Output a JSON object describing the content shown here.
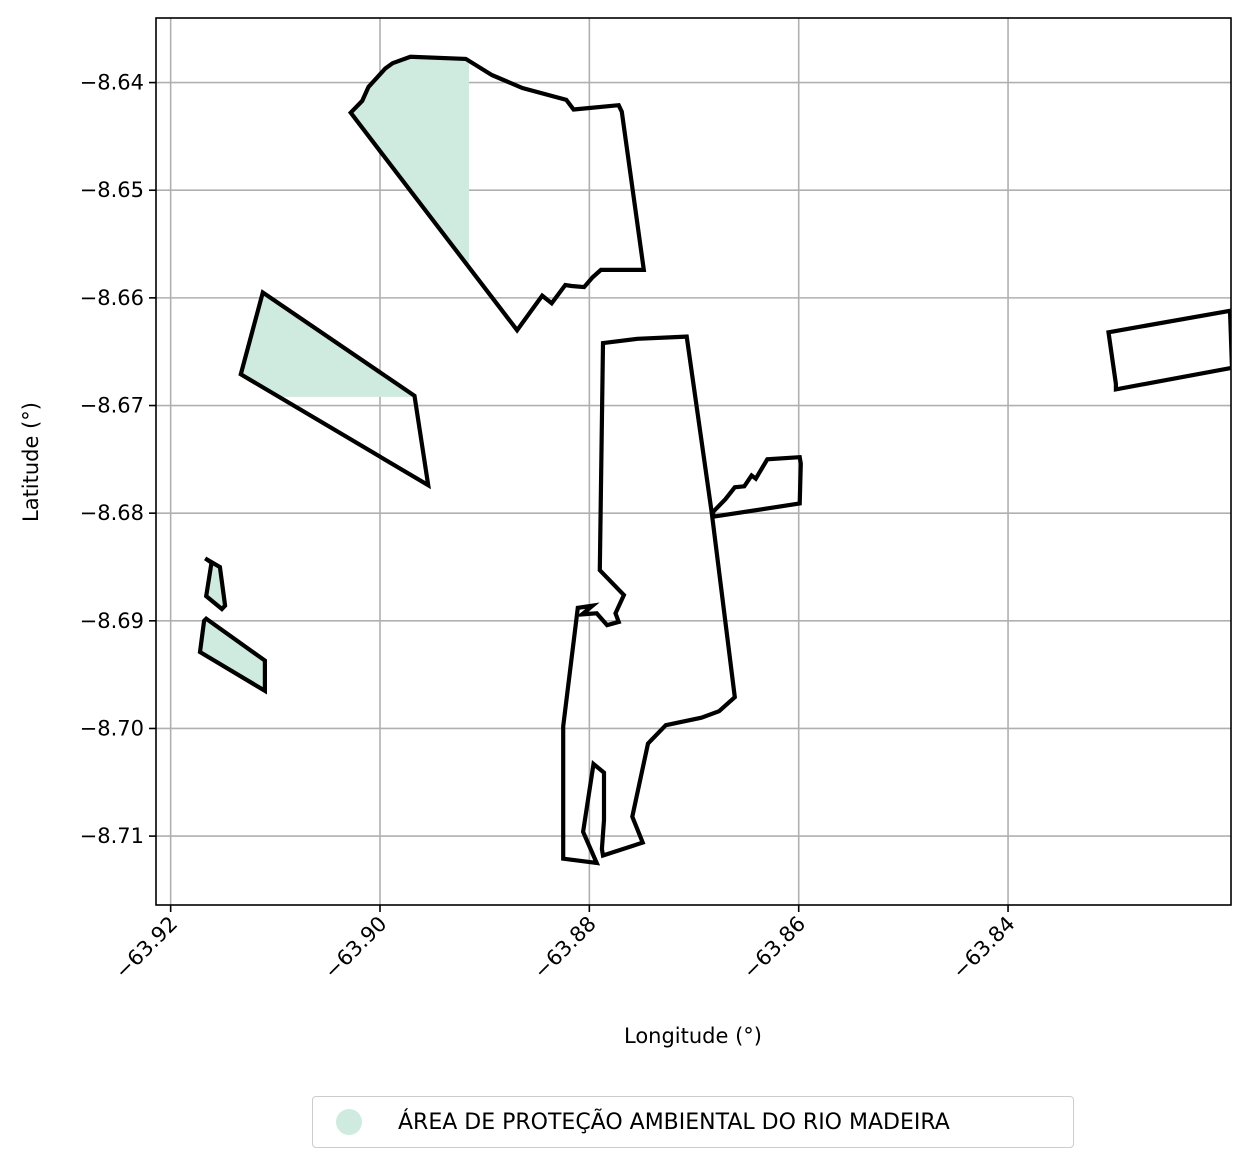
{
  "chart_data": {
    "type": "map",
    "xlabel": "Longitude (°)",
    "ylabel": "Latitude (°)",
    "xlim": [
      -63.9214,
      -63.8187
    ],
    "ylim": [
      -8.7164,
      -8.634
    ],
    "grid": true,
    "x_ticks": [
      -63.92,
      -63.9,
      -63.88,
      -63.86,
      -63.84
    ],
    "x_tick_labels": [
      "−63.92",
      "−63.90",
      "−63.88",
      "−63.86",
      "−63.84"
    ],
    "y_ticks": [
      -8.64,
      -8.65,
      -8.66,
      -8.67,
      -8.68,
      -8.69,
      -8.7,
      -8.71
    ],
    "y_tick_labels": [
      "−8.64",
      "−8.65",
      "−8.66",
      "−8.67",
      "−8.68",
      "−8.69",
      "−8.70",
      "−8.71"
    ],
    "legend": {
      "placement": "bottom-center",
      "entries": [
        {
          "label": "ÁREA DE PROTEÇÃO AMBIENTAL DO RIO MADEIRA",
          "color": "#cfeade"
        }
      ]
    },
    "fill_color": "#cfeade",
    "outline_color": "#000000",
    "polygons": [
      {
        "name": "north-parcel",
        "points": [
          [
            -63.9028,
            -8.6428
          ],
          [
            -63.9017,
            -8.6417
          ],
          [
            -63.9011,
            -8.6404
          ],
          [
            -63.8995,
            -8.6387
          ],
          [
            -63.8988,
            -8.6382
          ],
          [
            -63.8971,
            -8.6376
          ],
          [
            -63.8918,
            -8.6378
          ],
          [
            -63.8893,
            -8.6393
          ],
          [
            -63.8864,
            -8.6405
          ],
          [
            -63.8822,
            -8.6416
          ],
          [
            -63.8815,
            -8.6425
          ],
          [
            -63.8772,
            -8.6421
          ],
          [
            -63.8769,
            -8.6427
          ],
          [
            -63.8748,
            -8.6574
          ],
          [
            -63.8789,
            -8.6574
          ],
          [
            -63.8797,
            -8.6581
          ],
          [
            -63.8805,
            -8.659
          ],
          [
            -63.8817,
            -8.6589
          ],
          [
            -63.8823,
            -8.6588
          ],
          [
            -63.8836,
            -8.6605
          ],
          [
            -63.8845,
            -8.6598
          ],
          [
            -63.8869,
            -8.663
          ]
        ],
        "clip_x_max": -63.8915
      },
      {
        "name": "west-quadrilateral",
        "points": [
          [
            -63.9112,
            -8.6595
          ],
          [
            -63.9133,
            -8.6671
          ],
          [
            -63.8954,
            -8.6774
          ],
          [
            -63.8967,
            -8.6691
          ]
        ],
        "clip_y_min": -8.6692
      },
      {
        "name": "small-west-parcel-upper",
        "points": [
          [
            -63.9167,
            -8.6842
          ],
          [
            -63.9153,
            -8.685
          ],
          [
            -63.9148,
            -8.6886
          ],
          [
            -63.9151,
            -8.6889
          ],
          [
            -63.9166,
            -8.6877
          ],
          [
            -63.9161,
            -8.6846
          ]
        ],
        "clip_y_min": -8.7
      },
      {
        "name": "small-west-parcel-lower",
        "points": [
          [
            -63.9168,
            -8.69
          ],
          [
            -63.9172,
            -8.6929
          ],
          [
            -63.911,
            -8.6965
          ],
          [
            -63.911,
            -8.6937
          ],
          [
            -63.9166,
            -8.6898
          ]
        ],
        "clip_y_min": -8.7
      },
      {
        "name": "central-parcel",
        "points": [
          [
            -63.8787,
            -8.6642
          ],
          [
            -63.879,
            -8.6853
          ],
          [
            -63.8767,
            -8.6876
          ],
          [
            -63.8775,
            -8.6893
          ],
          [
            -63.8772,
            -8.6901
          ],
          [
            -63.8783,
            -8.6904
          ],
          [
            -63.8793,
            -8.6893
          ],
          [
            -63.8807,
            -8.6894
          ],
          [
            -63.8797,
            -8.6886
          ],
          [
            -63.8811,
            -8.6888
          ],
          [
            -63.8825,
            -8.6998
          ],
          [
            -63.8825,
            -8.7121
          ],
          [
            -63.8793,
            -8.7125
          ],
          [
            -63.8806,
            -8.7096
          ],
          [
            -63.8796,
            -8.7033
          ],
          [
            -63.8786,
            -8.7041
          ],
          [
            -63.8786,
            -8.7085
          ],
          [
            -63.8788,
            -8.7112
          ],
          [
            -63.8787,
            -8.7118
          ],
          [
            -63.8749,
            -8.7106
          ],
          [
            -63.8759,
            -8.7082
          ],
          [
            -63.8744,
            -8.7014
          ],
          [
            -63.8727,
            -8.6997
          ],
          [
            -63.8693,
            -8.699
          ],
          [
            -63.8676,
            -8.6984
          ],
          [
            -63.8661,
            -8.6971
          ],
          [
            -63.8683,
            -8.68
          ],
          [
            -63.867,
            -8.6787
          ],
          [
            -63.8661,
            -8.6776
          ],
          [
            -63.8652,
            -8.6775
          ],
          [
            -63.8645,
            -8.6765
          ],
          [
            -63.8641,
            -8.6768
          ],
          [
            -63.863,
            -8.675
          ],
          [
            -63.8599,
            -8.6748
          ],
          [
            -63.8598,
            -8.6754
          ],
          [
            -63.8599,
            -8.6791
          ],
          [
            -63.868,
            -8.6803
          ],
          [
            -63.8683,
            -8.68
          ],
          [
            -63.8707,
            -8.6636
          ],
          [
            -63.8754,
            -8.6638
          ]
        ]
      },
      {
        "name": "east-parcel",
        "points": [
          [
            -63.8304,
            -8.6632
          ],
          [
            -63.8188,
            -8.6612
          ],
          [
            -63.8186,
            -8.6665
          ],
          [
            -63.8297,
            -8.6685
          ],
          [
            -63.8297,
            -8.668
          ]
        ]
      }
    ]
  }
}
